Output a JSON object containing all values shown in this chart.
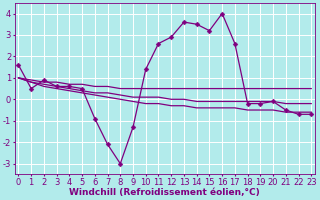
{
  "title": "",
  "xlabel": "Windchill (Refroidissement éolien,°C)",
  "background_color": "#b2ebeb",
  "grid_color": "#ffffff",
  "line_color": "#800080",
  "x": [
    0,
    1,
    2,
    3,
    4,
    5,
    6,
    7,
    8,
    9,
    10,
    11,
    12,
    13,
    14,
    15,
    16,
    17,
    18,
    19,
    20,
    21,
    22,
    23
  ],
  "series": [
    [
      1.6,
      0.5,
      0.9,
      0.6,
      0.6,
      0.5,
      -0.9,
      -2.1,
      -3.0,
      -1.3,
      1.4,
      2.6,
      2.9,
      3.6,
      3.5,
      3.2,
      4.0,
      2.6,
      -0.2,
      -0.2,
      -0.1,
      -0.5,
      -0.7,
      -0.7
    ],
    [
      1.0,
      0.9,
      0.8,
      0.8,
      0.7,
      0.7,
      0.6,
      0.6,
      0.5,
      0.5,
      0.5,
      0.5,
      0.5,
      0.5,
      0.5,
      0.5,
      0.5,
      0.5,
      0.5,
      0.5,
      0.5,
      0.5,
      0.5,
      0.5
    ],
    [
      1.0,
      0.8,
      0.7,
      0.6,
      0.5,
      0.4,
      0.3,
      0.3,
      0.2,
      0.1,
      0.1,
      0.1,
      0.0,
      0.0,
      -0.1,
      -0.1,
      -0.1,
      -0.1,
      -0.1,
      -0.1,
      -0.1,
      -0.2,
      -0.2,
      -0.2
    ],
    [
      1.0,
      0.8,
      0.6,
      0.5,
      0.4,
      0.3,
      0.2,
      0.1,
      0.0,
      -0.1,
      -0.2,
      -0.2,
      -0.3,
      -0.3,
      -0.4,
      -0.4,
      -0.4,
      -0.4,
      -0.5,
      -0.5,
      -0.5,
      -0.6,
      -0.6,
      -0.6
    ]
  ],
  "ylim": [
    -3.5,
    4.5
  ],
  "xlim": [
    -0.3,
    23.3
  ],
  "yticks": [
    -3,
    -2,
    -1,
    0,
    1,
    2,
    3,
    4
  ],
  "xticks": [
    0,
    1,
    2,
    3,
    4,
    5,
    6,
    7,
    8,
    9,
    10,
    11,
    12,
    13,
    14,
    15,
    16,
    17,
    18,
    19,
    20,
    21,
    22,
    23
  ],
  "xlabel_fontsize": 6.5,
  "tick_fontsize": 6,
  "linewidth": 0.9,
  "marker_size": 2.5,
  "figsize": [
    3.2,
    2.0
  ],
  "dpi": 100
}
